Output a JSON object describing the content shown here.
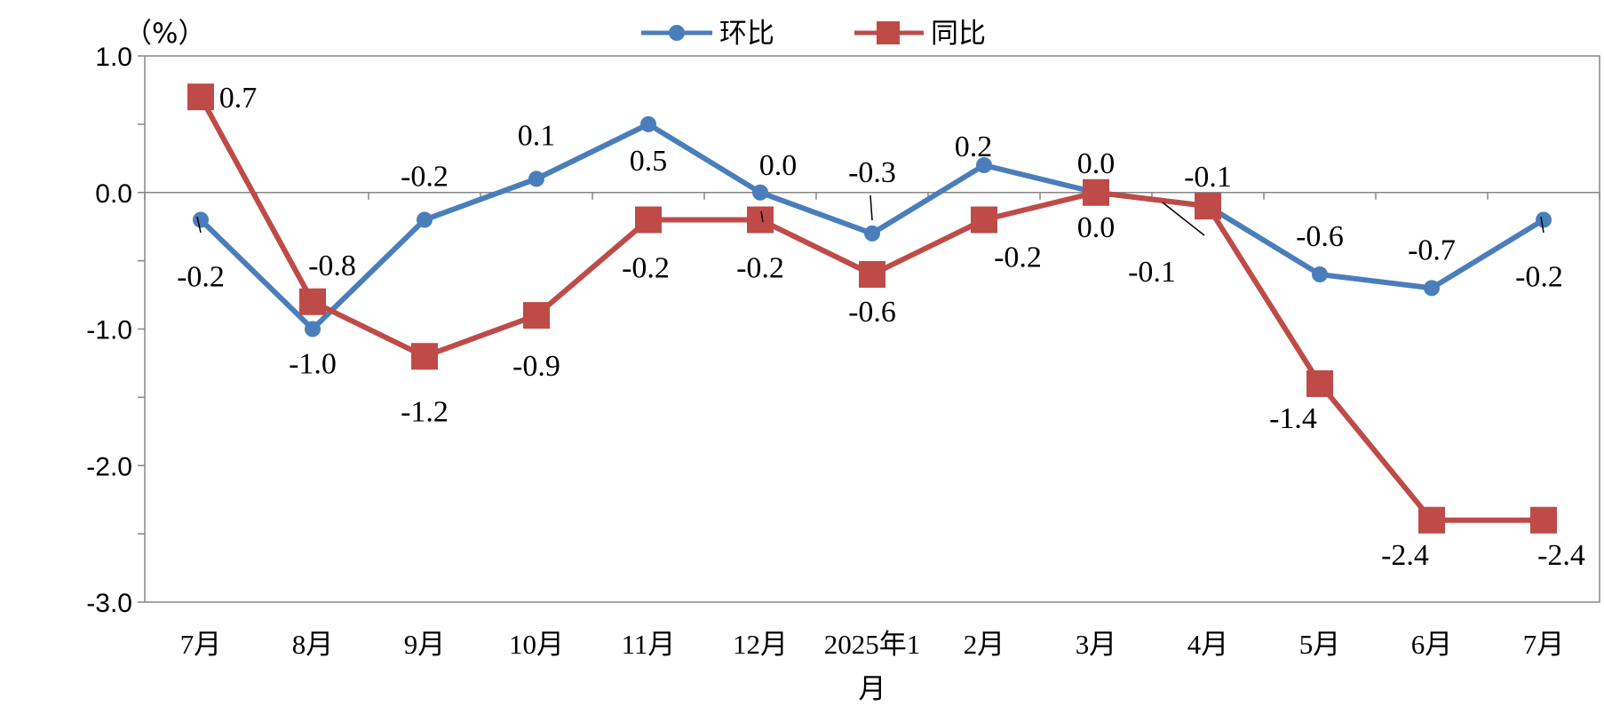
{
  "chart_data": {
    "type": "line",
    "y_unit_label": "（%）",
    "ylim": [
      -3.0,
      1.0
    ],
    "y_ticks": [
      "1.0",
      "0.0",
      "-1.0",
      "-2.0",
      "-3.0"
    ],
    "y_tick_values": [
      1.0,
      0.0,
      -1.0,
      -2.0,
      -3.0
    ],
    "categories": [
      "7月",
      "8月",
      "9月",
      "10月",
      "11月",
      "12月",
      "2025年1月",
      "2月",
      "3月",
      "4月",
      "5月",
      "6月",
      "7月"
    ],
    "series": [
      {
        "name": "环比",
        "color": "#4a7ebb",
        "marker": "circle",
        "values": [
          -0.2,
          -1.0,
          -0.2,
          0.1,
          0.5,
          0.0,
          -0.3,
          0.2,
          0.0,
          -0.1,
          -0.6,
          -0.7,
          -0.2
        ],
        "labels": [
          "-0.2",
          "-1.0",
          "-0.2",
          "0.1",
          "0.5",
          "0.0",
          "-0.3",
          "0.2",
          "0.0",
          "-0.1",
          "-0.6",
          "-0.7",
          "-0.2"
        ]
      },
      {
        "name": "同比",
        "color": "#be4b48",
        "marker": "square",
        "values": [
          0.7,
          -0.8,
          -1.2,
          -0.9,
          -0.2,
          -0.2,
          -0.6,
          -0.2,
          0.0,
          -0.1,
          -1.4,
          -2.4,
          -2.4
        ],
        "labels": [
          "0.7",
          "-0.8",
          "-1.2",
          "-0.9",
          "-0.2",
          "-0.2",
          "-0.6",
          "-0.2",
          "0.0",
          "-0.1",
          "-1.4",
          "-2.4",
          "-2.4"
        ]
      }
    ],
    "legend_position": "top-center",
    "grid": false
  }
}
